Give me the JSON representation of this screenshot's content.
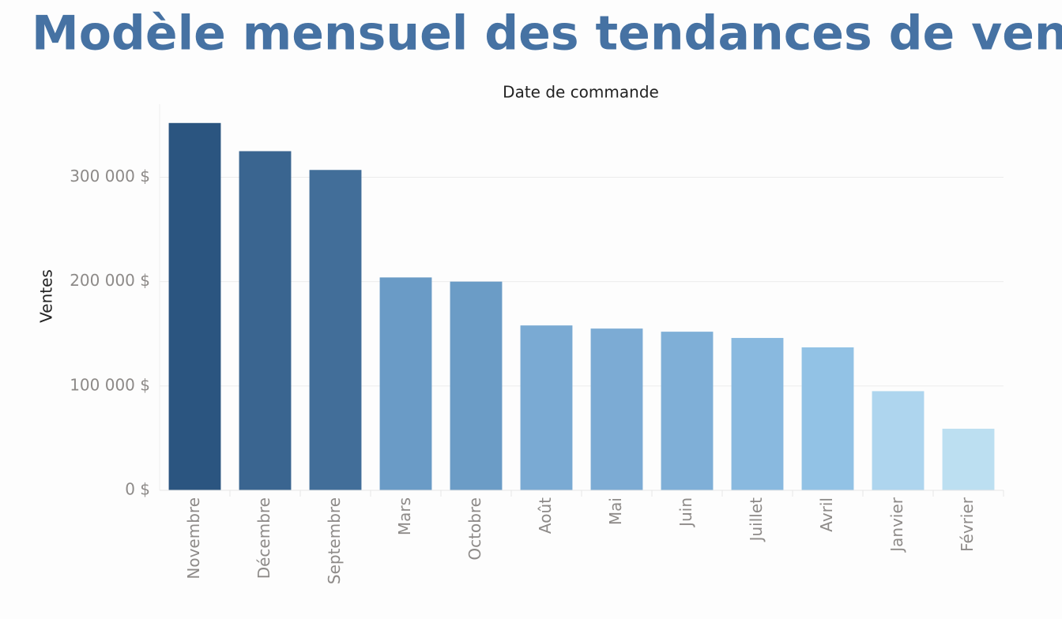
{
  "chart_data": {
    "type": "bar",
    "title": "Modèle mensuel des tendances de ventes",
    "x_label": "Date de commande",
    "y_label": "Ventes",
    "categories": [
      "Novembre",
      "Décembre",
      "Septembre",
      "Mars",
      "Octobre",
      "Août",
      "Mai",
      "Juin",
      "Juillet",
      "Avril",
      "Janvier",
      "Février"
    ],
    "values": [
      352000,
      325000,
      307000,
      204000,
      200000,
      158000,
      155000,
      152000,
      146000,
      137000,
      95000,
      59000
    ],
    "colors": [
      "#2b5580",
      "#3a6590",
      "#426e99",
      "#6a9bc6",
      "#6b9cc6",
      "#7aaad3",
      "#7cabd4",
      "#7fafd7",
      "#89b9df",
      "#92c2e5",
      "#aed5ee",
      "#bcdff1"
    ],
    "ylim": [
      0,
      370000
    ],
    "yticks": [
      {
        "value": 0,
        "label": "0 $"
      },
      {
        "value": 100000,
        "label": "100 000 $"
      },
      {
        "value": 200000,
        "label": "200 000 $"
      },
      {
        "value": 300000,
        "label": "300 000 $"
      }
    ],
    "grid": true
  }
}
